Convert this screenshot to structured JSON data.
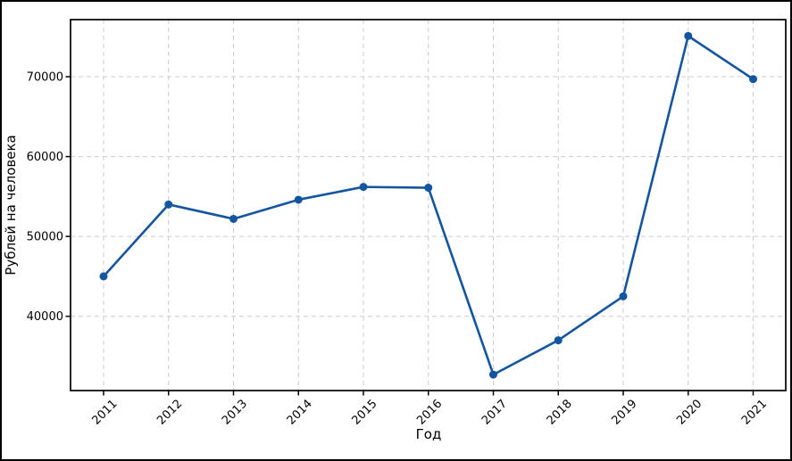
{
  "figure": {
    "background": "#ffffff",
    "outer_border_color": "#000000"
  },
  "chart_data": {
    "type": "line",
    "title": "",
    "xlabel": "Год",
    "ylabel": "Рублей на человека",
    "categories": [
      "2011",
      "2012",
      "2013",
      "2014",
      "2015",
      "2016",
      "2017",
      "2018",
      "2019",
      "2020",
      "2021"
    ],
    "values": [
      45000,
      54000,
      52200,
      54600,
      56200,
      56100,
      32700,
      37000,
      42500,
      75100,
      69700
    ],
    "yticks": [
      40000,
      50000,
      60000,
      70000
    ],
    "ylim": [
      30700,
      77150
    ],
    "grid": true,
    "grid_style": "dashed",
    "legend": "none",
    "marker": "circle",
    "line_color": "#1455a0",
    "grid_color": "#cccccc",
    "axis_color": "#000000",
    "text_color": "#000000"
  }
}
